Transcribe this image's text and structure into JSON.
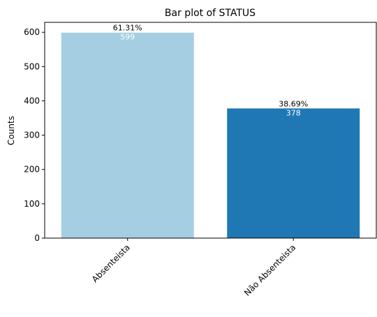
{
  "chart_data": {
    "type": "bar",
    "title": "Bar plot of STATUS",
    "xlabel": "",
    "ylabel": "Counts",
    "categories": [
      "Absenteista",
      "Não Absenteista"
    ],
    "values": [
      599,
      378
    ],
    "value_labels": [
      "599",
      "378"
    ],
    "percent_labels": [
      "61.31%",
      "38.69%"
    ],
    "colors": [
      "#a6cee3",
      "#1f78b4"
    ],
    "ylim": [
      0,
      629
    ],
    "yticks": [
      0,
      100,
      200,
      300,
      400,
      500,
      600
    ],
    "grid": false,
    "legend": "none",
    "xtick_rotation": 45
  }
}
